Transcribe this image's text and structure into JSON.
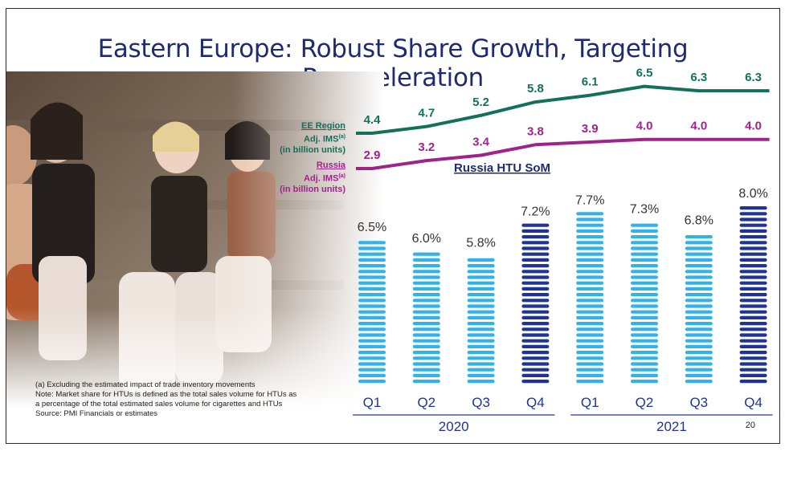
{
  "slide": {
    "title": "Eastern Europe: Robust Share Growth, Targeting Reacceleration",
    "page_number": "20"
  },
  "photo": {
    "subject": "group of young people smiling, seated on steps"
  },
  "legend": {
    "ee": {
      "name": "EE Region",
      "line2": "Adj. IMS",
      "sup": "(a)",
      "line3": "(in billion units)"
    },
    "russia": {
      "name": "Russia",
      "line2": "Adj. IMS",
      "sup": "(a)",
      "line3": "(in billion units)"
    }
  },
  "notes": [
    "(a)  Excluding the estimated impact of trade inventory movements",
    "Note: Market share for HTUs is defined as the total sales volume for HTUs as a percentage of the total estimated sales volume for cigarettes and HTUs",
    "Source: PMI Financials or estimates"
  ],
  "colors": {
    "title": "#1f2b6e",
    "ee_line": "#13705a",
    "russia_line": "#a0228b",
    "bar_light": "#2fb3ea",
    "bar_dark": "#1f3496",
    "axis_text": "#1f3496"
  },
  "chart_data": {
    "type": "bar",
    "title": "Russia HTU SoM",
    "categories": [
      "Q1",
      "Q2",
      "Q3",
      "Q4",
      "Q1",
      "Q2",
      "Q3",
      "Q4"
    ],
    "years": [
      {
        "label": "2020",
        "span": [
          0,
          3
        ]
      },
      {
        "label": "2021",
        "span": [
          4,
          7
        ]
      }
    ],
    "series": [
      {
        "name": "Russia HTU SoM",
        "values": [
          6.5,
          6.0,
          5.8,
          7.2,
          7.7,
          7.3,
          6.8,
          8.0
        ],
        "labels": [
          "6.5%",
          "6.0%",
          "5.8%",
          "7.2%",
          "7.7%",
          "7.3%",
          "6.8%",
          "8.0%"
        ],
        "dark_bars": [
          3,
          7
        ]
      }
    ],
    "lines": [
      {
        "name": "EE Region Adj. IMS",
        "values": [
          4.4,
          4.7,
          5.2,
          5.8,
          6.1,
          6.5,
          6.3,
          6.3
        ],
        "labels": [
          "4.4",
          "4.7",
          "5.2",
          "5.8",
          "6.1",
          "6.5",
          "6.3",
          "6.3"
        ]
      },
      {
        "name": "Russia Adj. IMS",
        "values": [
          2.9,
          3.2,
          3.4,
          3.8,
          3.9,
          4.0,
          4.0,
          4.0
        ],
        "labels": [
          "2.9",
          "3.2",
          "3.4",
          "3.8",
          "3.9",
          "4.0",
          "4.0",
          "4.0"
        ]
      }
    ],
    "ylim": [
      0,
      8.0
    ]
  }
}
